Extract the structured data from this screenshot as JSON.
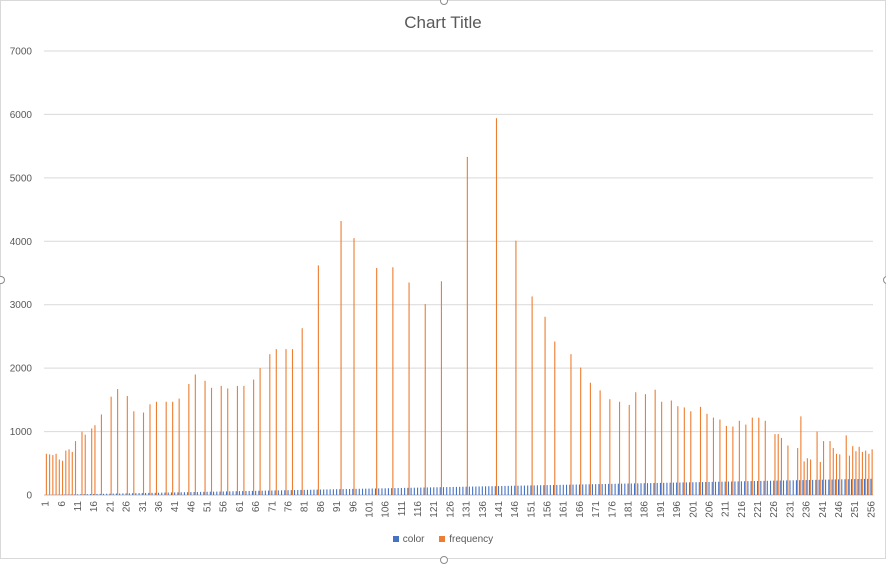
{
  "chart_data": {
    "type": "bar",
    "title": "Chart Title",
    "xlabel": "",
    "ylabel": "",
    "ylim": [
      0,
      7000
    ],
    "yticks": [
      0,
      1000,
      2000,
      3000,
      4000,
      5000,
      6000,
      7000
    ],
    "x_range": [
      1,
      256
    ],
    "xtick_step": 5,
    "grid": true,
    "legend_position": "bottom",
    "series": [
      {
        "name": "color",
        "color": "#4472c4",
        "note": "equal to category value",
        "values": [
          1,
          2,
          3,
          4,
          5,
          6,
          7,
          8,
          9,
          10,
          11,
          12,
          13,
          14,
          15,
          16,
          17,
          18,
          19,
          20,
          21,
          22,
          23,
          24,
          25,
          26,
          27,
          28,
          29,
          30,
          31,
          32,
          33,
          34,
          35,
          36,
          37,
          38,
          39,
          40,
          41,
          42,
          43,
          44,
          45,
          46,
          47,
          48,
          49,
          50,
          51,
          52,
          53,
          54,
          55,
          56,
          57,
          58,
          59,
          60,
          61,
          62,
          63,
          64,
          65,
          66,
          67,
          68,
          69,
          70,
          71,
          72,
          73,
          74,
          75,
          76,
          77,
          78,
          79,
          80,
          81,
          82,
          83,
          84,
          85,
          86,
          87,
          88,
          89,
          90,
          91,
          92,
          93,
          94,
          95,
          96,
          97,
          98,
          99,
          100,
          101,
          102,
          103,
          104,
          105,
          106,
          107,
          108,
          109,
          110,
          111,
          112,
          113,
          114,
          115,
          116,
          117,
          118,
          119,
          120,
          121,
          122,
          123,
          124,
          125,
          126,
          127,
          128,
          129,
          130,
          131,
          132,
          133,
          134,
          135,
          136,
          137,
          138,
          139,
          140,
          141,
          142,
          143,
          144,
          145,
          146,
          147,
          148,
          149,
          150,
          151,
          152,
          153,
          154,
          155,
          156,
          157,
          158,
          159,
          160,
          161,
          162,
          163,
          164,
          165,
          166,
          167,
          168,
          169,
          170,
          171,
          172,
          173,
          174,
          175,
          176,
          177,
          178,
          179,
          180,
          181,
          182,
          183,
          184,
          185,
          186,
          187,
          188,
          189,
          190,
          191,
          192,
          193,
          194,
          195,
          196,
          197,
          198,
          199,
          200,
          201,
          202,
          203,
          204,
          205,
          206,
          207,
          208,
          209,
          210,
          211,
          212,
          213,
          214,
          215,
          216,
          217,
          218,
          219,
          220,
          221,
          222,
          223,
          224,
          225,
          226,
          227,
          228,
          229,
          230,
          231,
          232,
          233,
          234,
          235,
          236,
          237,
          238,
          239,
          240,
          241,
          242,
          243,
          244,
          245,
          246,
          247,
          248,
          249,
          250,
          251,
          252,
          253,
          254,
          255,
          256
        ]
      },
      {
        "name": "frequency",
        "color": "#ed7d31",
        "points": [
          [
            1,
            650
          ],
          [
            2,
            640
          ],
          [
            3,
            630
          ],
          [
            4,
            650
          ],
          [
            5,
            560
          ],
          [
            6,
            540
          ],
          [
            7,
            700
          ],
          [
            8,
            720
          ],
          [
            9,
            680
          ],
          [
            10,
            850
          ],
          [
            12,
            1000
          ],
          [
            13,
            950
          ],
          [
            15,
            1050
          ],
          [
            16,
            1100
          ],
          [
            18,
            1270
          ],
          [
            21,
            1550
          ],
          [
            23,
            1670
          ],
          [
            26,
            1560
          ],
          [
            28,
            1320
          ],
          [
            31,
            1300
          ],
          [
            33,
            1430
          ],
          [
            35,
            1470
          ],
          [
            38,
            1470
          ],
          [
            40,
            1470
          ],
          [
            42,
            1520
          ],
          [
            45,
            1750
          ],
          [
            47,
            1900
          ],
          [
            50,
            1800
          ],
          [
            52,
            1690
          ],
          [
            55,
            1720
          ],
          [
            57,
            1680
          ],
          [
            60,
            1720
          ],
          [
            62,
            1720
          ],
          [
            65,
            1820
          ],
          [
            67,
            2000
          ],
          [
            70,
            2220
          ],
          [
            72,
            2300
          ],
          [
            75,
            2300
          ],
          [
            77,
            2300
          ],
          [
            80,
            2630
          ],
          [
            85,
            3620
          ],
          [
            92,
            4320
          ],
          [
            96,
            4050
          ],
          [
            103,
            3580
          ],
          [
            108,
            3590
          ],
          [
            113,
            3350
          ],
          [
            118,
            3010
          ],
          [
            123,
            3370
          ],
          [
            131,
            5330
          ],
          [
            140,
            5940
          ],
          [
            146,
            4010
          ],
          [
            151,
            3130
          ],
          [
            155,
            2810
          ],
          [
            158,
            2420
          ],
          [
            163,
            2220
          ],
          [
            166,
            2010
          ],
          [
            169,
            1770
          ],
          [
            172,
            1650
          ],
          [
            175,
            1510
          ],
          [
            178,
            1470
          ],
          [
            181,
            1420
          ],
          [
            183,
            1620
          ],
          [
            186,
            1590
          ],
          [
            189,
            1660
          ],
          [
            191,
            1470
          ],
          [
            194,
            1490
          ],
          [
            196,
            1400
          ],
          [
            198,
            1380
          ],
          [
            200,
            1320
          ],
          [
            203,
            1390
          ],
          [
            205,
            1280
          ],
          [
            207,
            1220
          ],
          [
            209,
            1190
          ],
          [
            211,
            1090
          ],
          [
            213,
            1080
          ],
          [
            215,
            1170
          ],
          [
            217,
            1110
          ],
          [
            219,
            1220
          ],
          [
            221,
            1220
          ],
          [
            223,
            1170
          ],
          [
            226,
            960
          ],
          [
            227,
            960
          ],
          [
            228,
            900
          ],
          [
            230,
            780
          ],
          [
            233,
            740
          ],
          [
            234,
            1240
          ],
          [
            235,
            530
          ],
          [
            236,
            580
          ],
          [
            237,
            560
          ],
          [
            239,
            1000
          ],
          [
            240,
            520
          ],
          [
            241,
            850
          ],
          [
            243,
            850
          ],
          [
            244,
            740
          ],
          [
            245,
            650
          ],
          [
            246,
            640
          ],
          [
            248,
            940
          ],
          [
            249,
            620
          ],
          [
            250,
            770
          ],
          [
            251,
            690
          ],
          [
            252,
            760
          ],
          [
            253,
            680
          ],
          [
            254,
            700
          ],
          [
            255,
            650
          ],
          [
            256,
            720
          ]
        ]
      }
    ]
  }
}
